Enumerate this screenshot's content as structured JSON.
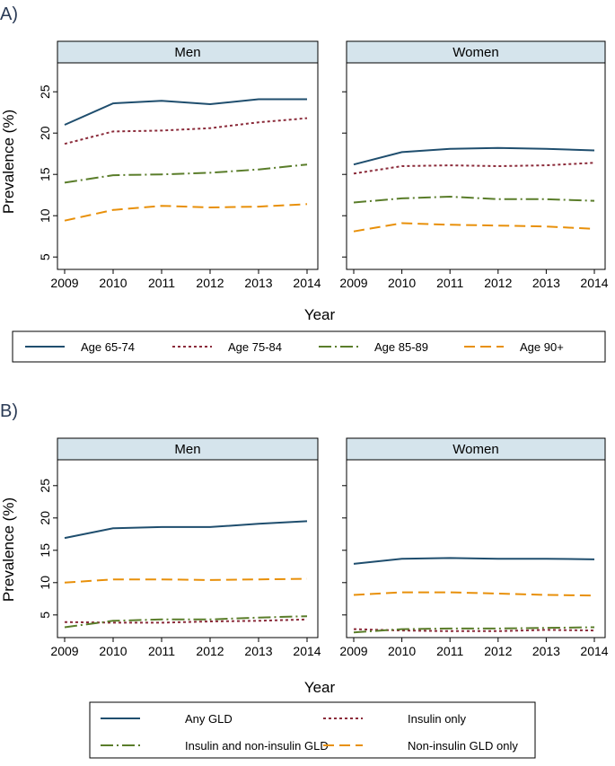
{
  "colors": {
    "strip_bg": "#d5e4ec",
    "series": [
      "#1f4e6e",
      "#8b2b3a",
      "#5a7d2a",
      "#e8900a"
    ]
  },
  "panels": [
    {
      "label": "A)",
      "chart_data": {
        "type": "line",
        "x": [
          2009,
          2010,
          2011,
          2012,
          2013,
          2014
        ],
        "xlabel": "Year",
        "ylabel": "Prevalence (%)",
        "ylim": [
          3.5,
          28.5
        ],
        "yticks": [
          5,
          10,
          15,
          20,
          25
        ],
        "facets": [
          {
            "title": "Men",
            "series": [
              {
                "name": "Age 65-74",
                "values": [
                  21.0,
                  23.6,
                  23.9,
                  23.5,
                  24.1,
                  24.1
                ]
              },
              {
                "name": "Age 75-84",
                "values": [
                  18.7,
                  20.2,
                  20.3,
                  20.6,
                  21.3,
                  21.8
                ]
              },
              {
                "name": "Age 85-89",
                "values": [
                  14.0,
                  14.9,
                  15.0,
                  15.2,
                  15.6,
                  16.2
                ]
              },
              {
                "name": "Age 90+",
                "values": [
                  9.4,
                  10.7,
                  11.2,
                  11.0,
                  11.1,
                  11.4
                ]
              }
            ]
          },
          {
            "title": "Women",
            "series": [
              {
                "name": "Age 65-74",
                "values": [
                  16.2,
                  17.7,
                  18.1,
                  18.2,
                  18.1,
                  17.9
                ]
              },
              {
                "name": "Age 75-84",
                "values": [
                  15.1,
                  16.0,
                  16.1,
                  16.0,
                  16.1,
                  16.4
                ]
              },
              {
                "name": "Age 85-89",
                "values": [
                  11.6,
                  12.1,
                  12.3,
                  12.0,
                  12.0,
                  11.8
                ]
              },
              {
                "name": "Age 90+",
                "values": [
                  8.1,
                  9.1,
                  8.9,
                  8.8,
                  8.7,
                  8.4
                ]
              }
            ]
          }
        ],
        "legend": [
          "Age 65-74",
          "Age 75-84",
          "Age 85-89",
          "Age 90+"
        ],
        "legend_position": "bottom"
      }
    },
    {
      "label": "B)",
      "chart_data": {
        "type": "line",
        "x": [
          2009,
          2010,
          2011,
          2012,
          2013,
          2014
        ],
        "xlabel": "Year",
        "ylabel": "Prevalence (%)",
        "ylim": [
          1.5,
          29.0
        ],
        "yticks": [
          5,
          10,
          15,
          20,
          25
        ],
        "facets": [
          {
            "title": "Men",
            "series": [
              {
                "name": "Any GLD",
                "values": [
                  16.9,
                  18.4,
                  18.6,
                  18.6,
                  19.1,
                  19.5
                ]
              },
              {
                "name": "Insulin only",
                "values": [
                  3.9,
                  3.8,
                  3.8,
                  4.0,
                  4.1,
                  4.3
                ]
              },
              {
                "name": "Insulin and non-insulin GLD",
                "values": [
                  3.1,
                  4.1,
                  4.3,
                  4.3,
                  4.6,
                  4.8
                ]
              },
              {
                "name": "Non-insulin GLD only",
                "values": [
                  10.0,
                  10.5,
                  10.5,
                  10.4,
                  10.5,
                  10.6
                ]
              }
            ]
          },
          {
            "title": "Women",
            "series": [
              {
                "name": "Any GLD",
                "values": [
                  12.9,
                  13.7,
                  13.8,
                  13.7,
                  13.7,
                  13.6
                ]
              },
              {
                "name": "Insulin only",
                "values": [
                  2.8,
                  2.6,
                  2.5,
                  2.5,
                  2.7,
                  2.6
                ]
              },
              {
                "name": "Insulin and non-insulin GLD",
                "values": [
                  2.3,
                  2.8,
                  2.9,
                  2.9,
                  3.0,
                  3.1
                ]
              },
              {
                "name": "Non-insulin GLD only",
                "values": [
                  8.1,
                  8.5,
                  8.5,
                  8.3,
                  8.1,
                  8.0
                ]
              }
            ]
          }
        ],
        "legend": [
          "Any GLD",
          "Insulin only",
          "Insulin and non-insulin GLD",
          "Non-insulin GLD only"
        ],
        "legend_position": "bottom"
      }
    }
  ]
}
